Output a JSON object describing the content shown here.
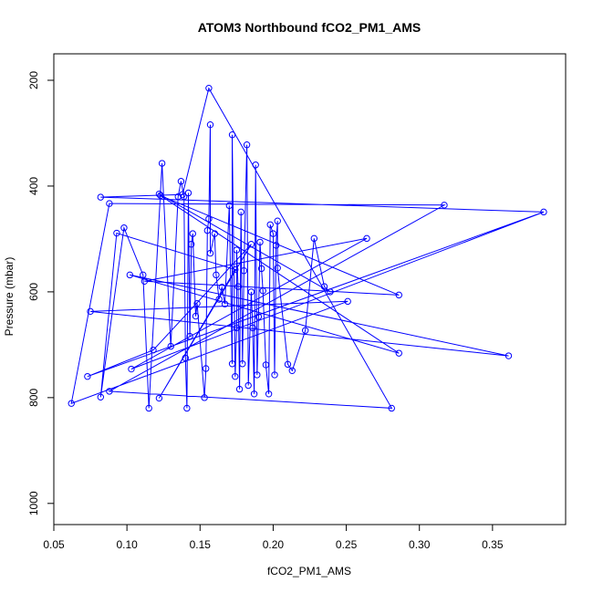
{
  "chart_data": {
    "type": "scatter",
    "title": "ATOM3 Northbound fCO2_PM1_AMS",
    "xlabel": "fCO2_PM1_AMS",
    "ylabel": "Pressure (mbar)",
    "xlim": [
      0.05,
      0.4
    ],
    "ylim": [
      1040,
      150
    ],
    "y_reversed": true,
    "xticks": [
      0.05,
      0.1,
      0.15,
      0.2,
      0.25,
      0.3,
      0.35
    ],
    "xtick_labels": [
      "0.05",
      "0.10",
      "0.15",
      "0.20",
      "0.25",
      "0.30",
      "0.35"
    ],
    "yticks": [
      200,
      400,
      600,
      800,
      1000
    ],
    "ytick_labels": [
      "200",
      "400",
      "600",
      "800",
      "1000"
    ],
    "grid": false,
    "color": "#0000ff",
    "points": [
      {
        "x": 0.385,
        "y": 449
      },
      {
        "x": 0.317,
        "y": 436
      },
      {
        "x": 0.082,
        "y": 421
      },
      {
        "x": 0.088,
        "y": 433
      },
      {
        "x": 0.361,
        "y": 721
      },
      {
        "x": 0.286,
        "y": 606
      },
      {
        "x": 0.286,
        "y": 716
      },
      {
        "x": 0.281,
        "y": 820
      },
      {
        "x": 0.264,
        "y": 499
      },
      {
        "x": 0.251,
        "y": 618
      },
      {
        "x": 0.062,
        "y": 811
      },
      {
        "x": 0.082,
        "y": 799
      },
      {
        "x": 0.073,
        "y": 760
      },
      {
        "x": 0.075,
        "y": 637
      },
      {
        "x": 0.088,
        "y": 788
      },
      {
        "x": 0.093,
        "y": 489
      },
      {
        "x": 0.098,
        "y": 479
      },
      {
        "x": 0.102,
        "y": 568
      },
      {
        "x": 0.103,
        "y": 746
      },
      {
        "x": 0.111,
        "y": 568
      },
      {
        "x": 0.112,
        "y": 580
      },
      {
        "x": 0.115,
        "y": 820
      },
      {
        "x": 0.118,
        "y": 710
      },
      {
        "x": 0.122,
        "y": 415
      },
      {
        "x": 0.123,
        "y": 418
      },
      {
        "x": 0.124,
        "y": 357
      },
      {
        "x": 0.122,
        "y": 801
      },
      {
        "x": 0.13,
        "y": 703
      },
      {
        "x": 0.135,
        "y": 420
      },
      {
        "x": 0.138,
        "y": 416
      },
      {
        "x": 0.137,
        "y": 391
      },
      {
        "x": 0.139,
        "y": 420
      },
      {
        "x": 0.14,
        "y": 725
      },
      {
        "x": 0.141,
        "y": 820
      },
      {
        "x": 0.142,
        "y": 413
      },
      {
        "x": 0.143,
        "y": 684
      },
      {
        "x": 0.144,
        "y": 510
      },
      {
        "x": 0.145,
        "y": 490
      },
      {
        "x": 0.147,
        "y": 646
      },
      {
        "x": 0.148,
        "y": 622
      },
      {
        "x": 0.153,
        "y": 800
      },
      {
        "x": 0.154,
        "y": 745
      },
      {
        "x": 0.155,
        "y": 484
      },
      {
        "x": 0.156,
        "y": 462
      },
      {
        "x": 0.156,
        "y": 215
      },
      {
        "x": 0.157,
        "y": 284
      },
      {
        "x": 0.157,
        "y": 527
      },
      {
        "x": 0.16,
        "y": 490
      },
      {
        "x": 0.161,
        "y": 568
      },
      {
        "x": 0.163,
        "y": 614
      },
      {
        "x": 0.165,
        "y": 591
      },
      {
        "x": 0.167,
        "y": 623
      },
      {
        "x": 0.17,
        "y": 437
      },
      {
        "x": 0.172,
        "y": 736
      },
      {
        "x": 0.172,
        "y": 303
      },
      {
        "x": 0.174,
        "y": 558
      },
      {
        "x": 0.174,
        "y": 760
      },
      {
        "x": 0.175,
        "y": 668
      },
      {
        "x": 0.175,
        "y": 521
      },
      {
        "x": 0.176,
        "y": 590
      },
      {
        "x": 0.177,
        "y": 784
      },
      {
        "x": 0.178,
        "y": 449
      },
      {
        "x": 0.179,
        "y": 736
      },
      {
        "x": 0.18,
        "y": 560
      },
      {
        "x": 0.182,
        "y": 322
      },
      {
        "x": 0.183,
        "y": 777
      },
      {
        "x": 0.185,
        "y": 600
      },
      {
        "x": 0.185,
        "y": 510
      },
      {
        "x": 0.186,
        "y": 668
      },
      {
        "x": 0.187,
        "y": 793
      },
      {
        "x": 0.188,
        "y": 360
      },
      {
        "x": 0.189,
        "y": 757
      },
      {
        "x": 0.19,
        "y": 647
      },
      {
        "x": 0.191,
        "y": 506
      },
      {
        "x": 0.192,
        "y": 556
      },
      {
        "x": 0.193,
        "y": 598
      },
      {
        "x": 0.195,
        "y": 738
      },
      {
        "x": 0.197,
        "y": 793
      },
      {
        "x": 0.198,
        "y": 473
      },
      {
        "x": 0.2,
        "y": 490
      },
      {
        "x": 0.201,
        "y": 757
      },
      {
        "x": 0.202,
        "y": 512
      },
      {
        "x": 0.203,
        "y": 466
      },
      {
        "x": 0.203,
        "y": 555
      },
      {
        "x": 0.21,
        "y": 737
      },
      {
        "x": 0.213,
        "y": 749
      },
      {
        "x": 0.222,
        "y": 673
      },
      {
        "x": 0.228,
        "y": 499
      },
      {
        "x": 0.235,
        "y": 590
      },
      {
        "x": 0.239,
        "y": 600
      }
    ],
    "path": [
      0,
      2,
      29,
      44,
      7,
      14,
      1,
      3,
      10,
      9,
      13,
      4,
      17,
      6,
      24,
      5,
      20,
      8,
      18,
      0,
      12,
      22,
      67,
      26,
      55,
      15,
      11,
      16,
      19,
      21,
      25,
      27,
      28,
      30,
      31,
      32,
      33,
      34,
      35,
      36,
      37,
      38,
      39,
      40,
      41,
      42,
      43,
      45,
      46,
      47,
      48,
      49,
      50,
      51,
      52,
      53,
      54,
      56,
      57,
      58,
      59,
      60,
      61,
      62,
      63,
      64,
      65,
      66,
      68,
      69,
      70,
      71,
      72,
      73,
      74,
      75,
      76,
      77,
      78,
      79,
      80,
      81,
      82,
      83,
      84,
      85,
      86,
      87,
      88,
      89,
      23
    ]
  }
}
